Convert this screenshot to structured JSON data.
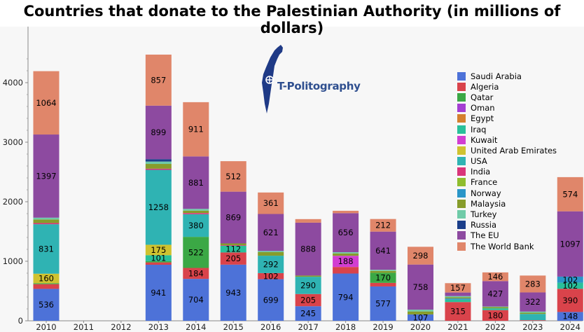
{
  "title": "Countries that donate to the Palestinian Authority (in millions of dollars)",
  "logo": {
    "text": "T-Politography"
  },
  "chart_data": {
    "type": "bar",
    "stacked": true,
    "categories": [
      "2010",
      "2011",
      "2012",
      "2013",
      "2014",
      "2015",
      "2016",
      "2017",
      "2018",
      "2019",
      "2020",
      "2021",
      "2022",
      "2023",
      "2024"
    ],
    "ylim": [
      0,
      4600
    ],
    "yticks": [
      0,
      1000,
      2000,
      3000,
      4000
    ],
    "legend_position": "right",
    "series": [
      {
        "name": "Saudi Arabia",
        "color": "#4d72d8",
        "values": [
          536,
          0,
          0,
          941,
          704,
          943,
          699,
          245,
          794,
          577,
          107,
          0,
          0,
          0,
          148
        ],
        "labels": [
          "536",
          "",
          "",
          "941",
          "704",
          "943",
          "699",
          "245",
          "794",
          "577",
          "107",
          "",
          "",
          "",
          "148"
        ]
      },
      {
        "name": "Algeria",
        "color": "#d9434b",
        "values": [
          80,
          0,
          0,
          40,
          184,
          205,
          102,
          205,
          110,
          60,
          0,
          315,
          180,
          10,
          390
        ],
        "labels": [
          "",
          "",
          "",
          "",
          "184",
          "205",
          "102",
          "205",
          "",
          "",
          "",
          "315",
          "180",
          "",
          "390"
        ]
      },
      {
        "name": "Qatar",
        "color": "#3ba845",
        "values": [
          15,
          0,
          0,
          20,
          522,
          0,
          0,
          0,
          0,
          170,
          0,
          0,
          0,
          0,
          0
        ],
        "labels": [
          "",
          "",
          "",
          "",
          "522",
          "",
          "",
          "",
          "",
          "170",
          "",
          "",
          "",
          "",
          ""
        ]
      },
      {
        "name": "Oman",
        "color": "#a43fd2",
        "values": [
          0,
          0,
          0,
          0,
          0,
          0,
          0,
          0,
          0,
          0,
          0,
          0,
          0,
          0,
          0
        ],
        "labels": [
          "",
          "",
          "",
          "",
          "",
          "",
          "",
          "",
          "",
          "",
          "",
          "",
          "",
          "",
          ""
        ]
      },
      {
        "name": "Egypt",
        "color": "#d5802f",
        "values": [
          0,
          0,
          0,
          0,
          0,
          0,
          0,
          0,
          0,
          0,
          0,
          0,
          0,
          0,
          0
        ],
        "labels": [
          "",
          "",
          "",
          "",
          "",
          "",
          "",
          "",
          "",
          "",
          "",
          "",
          "",
          "",
          ""
        ]
      },
      {
        "name": "Iraq",
        "color": "#29c09a",
        "values": [
          0,
          0,
          0,
          101,
          0,
          112,
          0,
          0,
          0,
          0,
          0,
          40,
          30,
          0,
          102
        ],
        "labels": [
          "",
          "",
          "",
          "101",
          "",
          "112",
          "",
          "",
          "",
          "",
          "",
          "",
          "",
          "",
          "102"
        ]
      },
      {
        "name": "Kuwait",
        "color": "#d23ed2",
        "values": [
          0,
          0,
          0,
          0,
          0,
          0,
          0,
          0,
          188,
          0,
          0,
          0,
          0,
          0,
          0
        ],
        "labels": [
          "",
          "",
          "",
          "",
          "",
          "",
          "",
          "",
          "188",
          "",
          "",
          "",
          "",
          "",
          ""
        ]
      },
      {
        "name": "United Arab Emirates",
        "color": "#cfc22f",
        "values": [
          160,
          0,
          0,
          175,
          0,
          0,
          0,
          0,
          0,
          0,
          0,
          0,
          0,
          0,
          0
        ],
        "labels": [
          "160",
          "",
          "",
          "175",
          "",
          "",
          "",
          "",
          "",
          "",
          "",
          "",
          "",
          "",
          ""
        ]
      },
      {
        "name": "USA",
        "color": "#2fb3b3",
        "values": [
          831,
          0,
          0,
          1258,
          380,
          0,
          292,
          290,
          0,
          0,
          0,
          0,
          0,
          105,
          0
        ],
        "labels": [
          "831",
          "",
          "",
          "1258",
          "380",
          "",
          "292",
          "290",
          "",
          "",
          "",
          "",
          "",
          "",
          ""
        ]
      },
      {
        "name": "India",
        "color": "#d9357a",
        "values": [
          20,
          0,
          0,
          20,
          20,
          10,
          0,
          0,
          0,
          0,
          0,
          0,
          0,
          0,
          0
        ],
        "labels": [
          "",
          "",
          "",
          "",
          "",
          "",
          "",
          "",
          "",
          "",
          "",
          "",
          "",
          "",
          ""
        ]
      },
      {
        "name": "France",
        "color": "#8fbd2e",
        "values": [
          0,
          0,
          0,
          0,
          0,
          0,
          0,
          0,
          0,
          0,
          0,
          0,
          0,
          0,
          0
        ],
        "labels": [
          "",
          "",
          "",
          "",
          "",
          "",
          "",
          "",
          "",
          "",
          "",
          "",
          "",
          "",
          ""
        ]
      },
      {
        "name": "Norway",
        "color": "#2a96c8",
        "values": [
          0,
          0,
          0,
          0,
          0,
          0,
          0,
          0,
          0,
          0,
          0,
          20,
          0,
          0,
          102
        ],
        "labels": [
          "",
          "",
          "",
          "",
          "",
          "",
          "",
          "",
          "",
          "",
          "",
          "",
          "",
          "",
          "102"
        ]
      },
      {
        "name": "Malaysia",
        "color": "#879c2b",
        "values": [
          60,
          0,
          0,
          80,
          40,
          30,
          60,
          20,
          40,
          30,
          50,
          20,
          20,
          20,
          0
        ],
        "labels": [
          "",
          "",
          "",
          "",
          "",
          "",
          "",
          "",
          "",
          "",
          "",
          "",
          "",
          "",
          ""
        ]
      },
      {
        "name": "Turkey",
        "color": "#6fcba8",
        "values": [
          30,
          0,
          0,
          40,
          30,
          0,
          20,
          0,
          20,
          20,
          30,
          20,
          10,
          20,
          0
        ],
        "labels": [
          "",
          "",
          "",
          "",
          "",
          "",
          "",
          "",
          "",
          "",
          "",
          "",
          "",
          "",
          ""
        ]
      },
      {
        "name": "Russia",
        "color": "#1b3e8a",
        "values": [
          0,
          0,
          0,
          40,
          0,
          0,
          0,
          0,
          0,
          0,
          0,
          0,
          0,
          0,
          0
        ],
        "labels": [
          "",
          "",
          "",
          "",
          "",
          "",
          "",
          "",
          "",
          "",
          "",
          "",
          "",
          "",
          ""
        ]
      },
      {
        "name": "The EU",
        "color": "#8d4aa0",
        "values": [
          1397,
          0,
          0,
          899,
          881,
          869,
          621,
          888,
          656,
          641,
          758,
          60,
          427,
          322,
          1097
        ],
        "labels": [
          "1397",
          "",
          "",
          "899",
          "881",
          "869",
          "621",
          "888",
          "656",
          "641",
          "758",
          "",
          "427",
          "322",
          "1097"
        ]
      },
      {
        "name": "The World Bank",
        "color": "#e0866a",
        "values": [
          1064,
          0,
          0,
          857,
          911,
          512,
          361,
          60,
          40,
          212,
          298,
          157,
          146,
          283,
          574
        ],
        "labels": [
          "1064",
          "",
          "",
          "857",
          "911",
          "512",
          "361",
          "",
          "",
          "212",
          "298",
          "157",
          "146",
          "283",
          "574"
        ]
      }
    ]
  }
}
